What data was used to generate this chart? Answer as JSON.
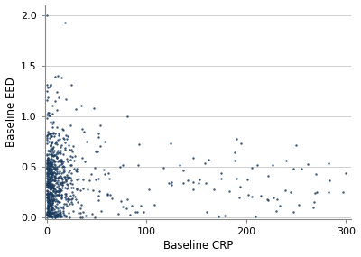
{
  "title": "",
  "xlabel": "Baseline CRP",
  "ylabel": "Baseline EED",
  "xlim": [
    -2,
    305
  ],
  "ylim": [
    -0.02,
    2.1
  ],
  "xticks": [
    0,
    100,
    200,
    300
  ],
  "yticks": [
    0,
    0.5,
    1,
    1.5,
    2
  ],
  "dot_color": "#1a3a5c",
  "dot_size": 3,
  "dot_alpha": 0.85,
  "background_color": "#ffffff",
  "grid_color": "#c8c8c8",
  "grid_linewidth": 0.6,
  "n_main": 800,
  "seed": 7
}
